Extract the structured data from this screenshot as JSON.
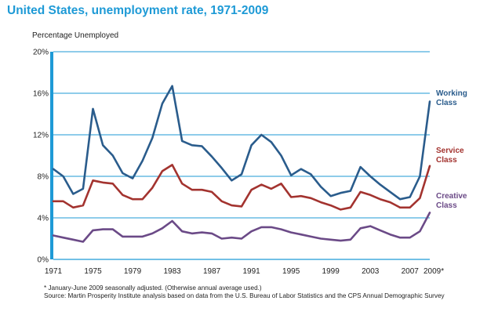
{
  "title": "United States, unemployment rate, 1971-2009",
  "footnote": {
    "line1": "* January-June 2009 seasonally adjusted. (Otherwise annual average used.)",
    "line2": "Source: Martin Prosperity Institute analysis based on data from the U.S. Bureau of Labor Statistics and the  CPS Annual Demographic Survey"
  },
  "colors": {
    "title": "#1e9ad6",
    "grid": "#1e9ad6",
    "working": "#2a5c8c",
    "service": "#a3332f",
    "creative": "#6b4a87"
  },
  "chart_data": {
    "type": "line",
    "title": "United States, unemployment rate, 1971-2009",
    "ylabel": "Percentage Unemployed",
    "xlabel": "",
    "ylim": [
      0,
      20
    ],
    "xlim": [
      1971,
      2009
    ],
    "grid": true,
    "legend": "inline labels at right end of lines",
    "y_ticks": [
      "0%",
      "4%",
      "8%",
      "12%",
      "16%",
      "20%"
    ],
    "y_tick_values": [
      0,
      4,
      8,
      12,
      16,
      20
    ],
    "x_ticks": [
      "1971",
      "1975",
      "1979",
      "1983",
      "1987",
      "1991",
      "1995",
      "1999",
      "2003",
      "2007",
      "2009*"
    ],
    "x_tick_values": [
      1971,
      1975,
      1979,
      1983,
      1987,
      1991,
      1995,
      1999,
      2003,
      2007,
      2009
    ],
    "x": [
      1971,
      1972,
      1973,
      1974,
      1975,
      1976,
      1977,
      1978,
      1979,
      1980,
      1981,
      1982,
      1983,
      1984,
      1985,
      1986,
      1987,
      1988,
      1989,
      1990,
      1991,
      1992,
      1993,
      1994,
      1995,
      1996,
      1997,
      1998,
      1999,
      2000,
      2001,
      2002,
      2003,
      2004,
      2005,
      2006,
      2007,
      2008,
      2009
    ],
    "series": [
      {
        "name": "Working Class",
        "label_lines": [
          "Working",
          "Class"
        ],
        "values": [
          8.7,
          8.0,
          6.3,
          6.8,
          14.5,
          11.0,
          10.0,
          8.3,
          7.8,
          9.5,
          11.7,
          15.0,
          16.7,
          11.4,
          11.0,
          10.9,
          9.9,
          8.8,
          7.6,
          8.2,
          11.0,
          12.0,
          11.3,
          10.0,
          8.1,
          8.7,
          8.2,
          7.0,
          6.1,
          6.4,
          6.6,
          8.9,
          8.0,
          7.2,
          6.5,
          5.8,
          6.0,
          8.0,
          15.2
        ]
      },
      {
        "name": "Service Class",
        "label_lines": [
          "Service",
          "Class"
        ],
        "values": [
          5.6,
          5.6,
          5.0,
          5.2,
          7.6,
          7.4,
          7.3,
          6.2,
          5.8,
          5.8,
          6.9,
          8.5,
          9.1,
          7.3,
          6.7,
          6.7,
          6.5,
          5.6,
          5.2,
          5.1,
          6.7,
          7.2,
          6.8,
          7.3,
          6.0,
          6.1,
          5.9,
          5.5,
          5.2,
          4.8,
          5.0,
          6.5,
          6.2,
          5.8,
          5.5,
          5.0,
          5.0,
          5.9,
          9.0
        ]
      },
      {
        "name": "Creative Class",
        "label_lines": [
          "Creative",
          "Class"
        ],
        "values": [
          2.3,
          2.1,
          1.9,
          1.7,
          2.8,
          2.9,
          2.9,
          2.2,
          2.2,
          2.2,
          2.5,
          3.0,
          3.7,
          2.7,
          2.5,
          2.6,
          2.5,
          2.0,
          2.1,
          2.0,
          2.7,
          3.1,
          3.1,
          2.9,
          2.6,
          2.4,
          2.2,
          2.0,
          1.9,
          1.8,
          1.9,
          3.0,
          3.2,
          2.8,
          2.4,
          2.1,
          2.1,
          2.7,
          4.5
        ]
      }
    ]
  }
}
